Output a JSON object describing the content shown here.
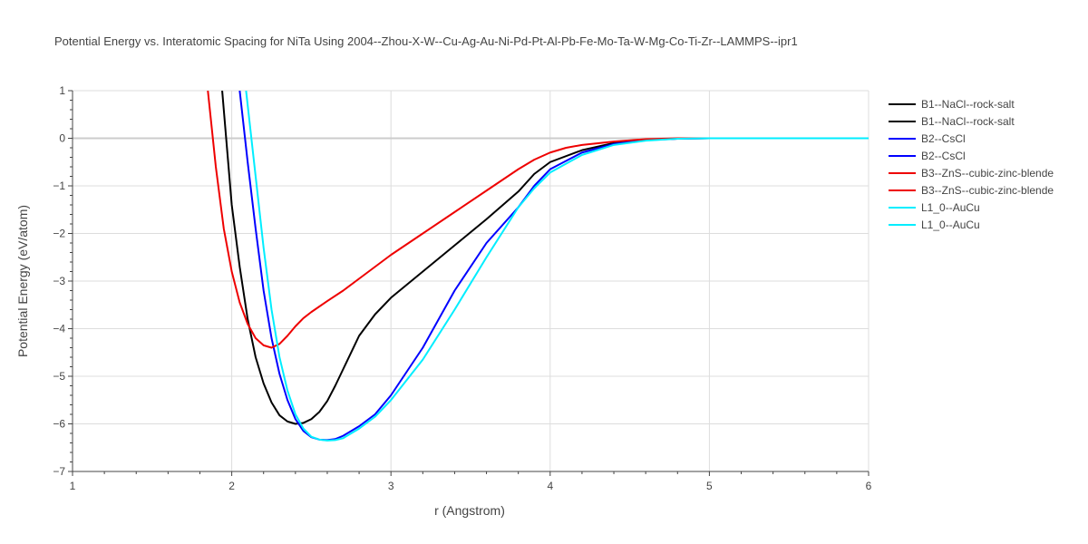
{
  "chart_data": {
    "type": "line",
    "title": "Potential Energy vs. Interatomic Spacing for NiTa Using 2004--Zhou-X-W--Cu-Ag-Au-Ni-Pd-Pt-Al-Pb-Fe-Mo-Ta-W-Mg-Co-Ti-Zr--LAMMPS--ipr1",
    "xlabel": "r (Angstrom)",
    "ylabel": "Potential Energy (eV/atom)",
    "xlim": [
      1,
      6
    ],
    "ylim": [
      -7,
      1
    ],
    "xticks": [
      "1",
      "2",
      "3",
      "4",
      "5",
      "6"
    ],
    "yticks": [
      "1",
      "0",
      "−1",
      "−2",
      "−3",
      "−4",
      "−5",
      "−6",
      "−7"
    ],
    "grid": true,
    "legend_position": "right",
    "series": [
      {
        "name": "B1--NaCl--rock-salt",
        "color": "#000000",
        "x": [
          1.94,
          1.97,
          2.0,
          2.05,
          2.1,
          2.15,
          2.2,
          2.25,
          2.3,
          2.35,
          2.4,
          2.45,
          2.5,
          2.55,
          2.6,
          2.65,
          2.7,
          2.8,
          2.9,
          3.0,
          3.2,
          3.4,
          3.6,
          3.8,
          3.9,
          4.0,
          4.2,
          4.4,
          4.6,
          4.8,
          5.0,
          5.5,
          6.0
        ],
        "y": [
          1.0,
          -0.2,
          -1.4,
          -2.7,
          -3.8,
          -4.6,
          -5.15,
          -5.55,
          -5.82,
          -5.95,
          -6.0,
          -5.98,
          -5.9,
          -5.75,
          -5.52,
          -5.2,
          -4.85,
          -4.15,
          -3.7,
          -3.35,
          -2.8,
          -2.25,
          -1.7,
          -1.12,
          -0.75,
          -0.5,
          -0.25,
          -0.1,
          -0.03,
          -0.01,
          0.0,
          0.0,
          0.0
        ]
      },
      {
        "name": "B1--NaCl--rock-salt",
        "color": "#000000",
        "x": [],
        "y": []
      },
      {
        "name": "B2--CsCl",
        "color": "#0000ff",
        "x": [
          2.05,
          2.1,
          2.15,
          2.2,
          2.25,
          2.3,
          2.35,
          2.4,
          2.45,
          2.5,
          2.55,
          2.6,
          2.65,
          2.7,
          2.8,
          2.9,
          3.0,
          3.2,
          3.4,
          3.6,
          3.8,
          3.9,
          4.0,
          4.2,
          4.4,
          4.6,
          4.8,
          5.0,
          5.5,
          6.0
        ],
        "y": [
          1.0,
          -0.5,
          -1.9,
          -3.2,
          -4.2,
          -4.95,
          -5.5,
          -5.9,
          -6.15,
          -6.28,
          -6.33,
          -6.34,
          -6.32,
          -6.25,
          -6.05,
          -5.8,
          -5.4,
          -4.4,
          -3.2,
          -2.2,
          -1.45,
          -1.0,
          -0.65,
          -0.3,
          -0.12,
          -0.04,
          -0.01,
          0.0,
          0.0,
          0.0
        ]
      },
      {
        "name": "B2--CsCl",
        "color": "#0000ff",
        "x": [],
        "y": []
      },
      {
        "name": "B3--ZnS--cubic-zinc-blende",
        "color": "#ee0000",
        "x": [
          1.85,
          1.9,
          1.95,
          2.0,
          2.05,
          2.1,
          2.15,
          2.2,
          2.25,
          2.3,
          2.35,
          2.4,
          2.45,
          2.5,
          2.6,
          2.7,
          2.8,
          3.0,
          3.2,
          3.4,
          3.6,
          3.8,
          3.9,
          4.0,
          4.1,
          4.2,
          4.4,
          4.6,
          4.8,
          5.0,
          5.5,
          6.0
        ],
        "y": [
          1.0,
          -0.6,
          -1.9,
          -2.8,
          -3.45,
          -3.9,
          -4.2,
          -4.35,
          -4.4,
          -4.32,
          -4.15,
          -3.95,
          -3.78,
          -3.65,
          -3.42,
          -3.2,
          -2.95,
          -2.45,
          -2.0,
          -1.55,
          -1.1,
          -0.65,
          -0.45,
          -0.3,
          -0.2,
          -0.14,
          -0.07,
          -0.02,
          0.0,
          0.0,
          0.0,
          0.0
        ]
      },
      {
        "name": "B3--ZnS--cubic-zinc-blende",
        "color": "#ee0000",
        "x": [],
        "y": []
      },
      {
        "name": "L1_0--AuCu",
        "color": "#00eeff",
        "x": [
          2.09,
          2.15,
          2.2,
          2.25,
          2.3,
          2.35,
          2.4,
          2.45,
          2.5,
          2.55,
          2.6,
          2.65,
          2.7,
          2.8,
          2.9,
          3.0,
          3.2,
          3.4,
          3.6,
          3.8,
          3.9,
          4.0,
          4.2,
          4.4,
          4.6,
          4.8,
          5.0,
          5.5,
          6.0
        ],
        "y": [
          1.0,
          -0.8,
          -2.3,
          -3.6,
          -4.6,
          -5.3,
          -5.8,
          -6.1,
          -6.27,
          -6.33,
          -6.35,
          -6.34,
          -6.3,
          -6.1,
          -5.85,
          -5.5,
          -4.65,
          -3.6,
          -2.5,
          -1.45,
          -1.05,
          -0.72,
          -0.35,
          -0.14,
          -0.05,
          -0.01,
          0.0,
          0.0,
          0.0
        ]
      },
      {
        "name": "L1_0--AuCu",
        "color": "#00eeff",
        "x": [],
        "y": []
      }
    ]
  }
}
